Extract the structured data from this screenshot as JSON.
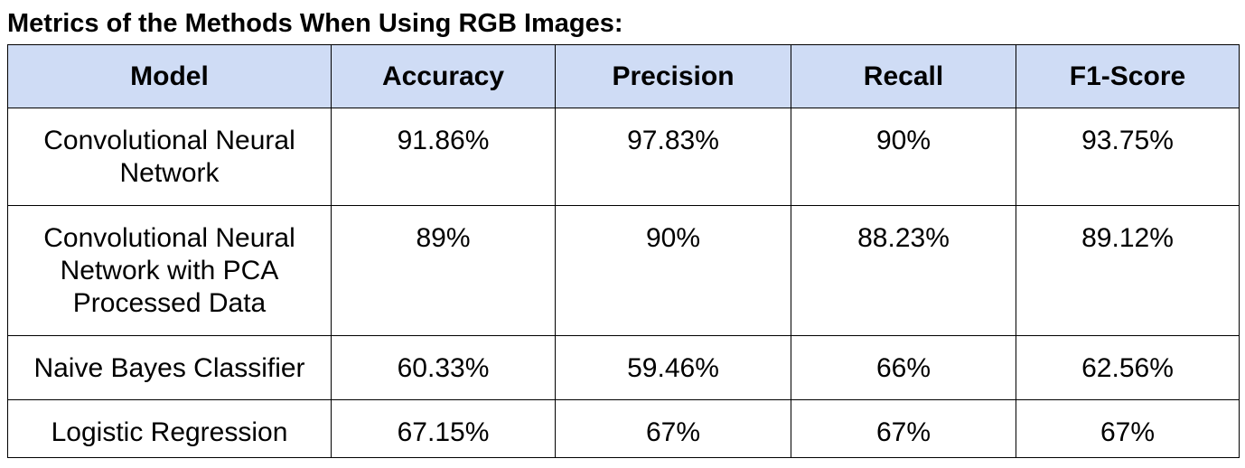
{
  "title": "Metrics of the Methods When Using RGB Images:",
  "table": {
    "headers": [
      "Model",
      "Accuracy",
      "Precision",
      "Recall",
      "F1-Score"
    ],
    "header_color": "#cfdcf5",
    "rows": [
      {
        "model": "Convolutional Neural Network",
        "accuracy": "91.86%",
        "precision": "97.83%",
        "recall": "90%",
        "f1": "93.75%"
      },
      {
        "model": "Convolutional Neural Network with PCA Processed Data",
        "accuracy": "89%",
        "precision": "90%",
        "recall": "88.23%",
        "f1": "89.12%"
      },
      {
        "model": "Naive Bayes Classifier",
        "accuracy": "60.33%",
        "precision": "59.46%",
        "recall": "66%",
        "f1": "62.56%"
      },
      {
        "model": "Logistic Regression",
        "accuracy": "67.15%",
        "precision": "67%",
        "recall": "67%",
        "f1": "67%"
      }
    ]
  }
}
